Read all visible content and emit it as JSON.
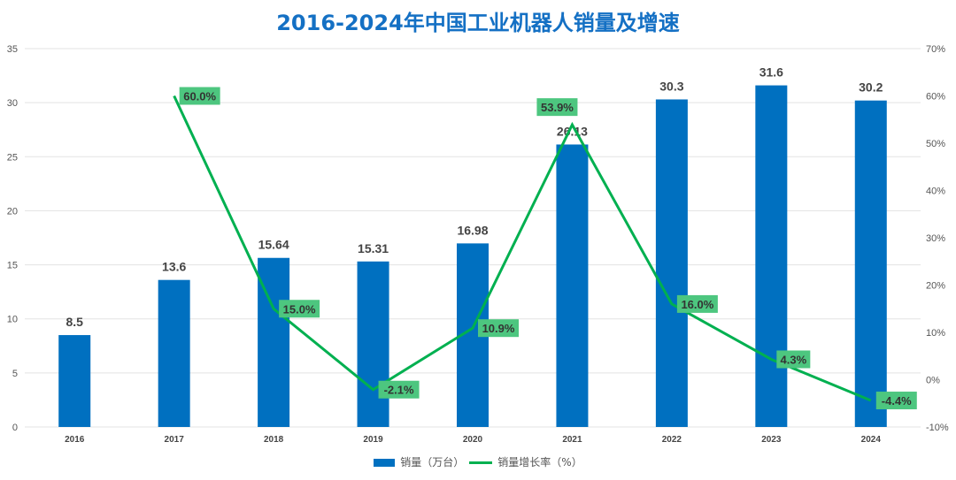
{
  "chart_data": {
    "type": "bar+line",
    "title": "2016-2024年中国工业机器人销量及增速",
    "categories": [
      "2016",
      "2017",
      "2018",
      "2019",
      "2020",
      "2021",
      "2022",
      "2023",
      "2024"
    ],
    "series": [
      {
        "name": "销量（万台）",
        "type": "bar",
        "axis": "left",
        "color": "#0070c0",
        "values": [
          8.5,
          13.6,
          15.64,
          15.31,
          16.98,
          26.13,
          30.3,
          31.6,
          30.2
        ],
        "labels": [
          "8.5",
          "13.6",
          "15.64",
          "15.31",
          "16.98",
          "26.13",
          "30.3",
          "31.6",
          "30.2"
        ]
      },
      {
        "name": "销量增长率（%）",
        "type": "line",
        "axis": "right",
        "color": "#00b050",
        "values": [
          null,
          60.0,
          15.0,
          -2.1,
          10.9,
          53.9,
          16.0,
          4.3,
          -4.4
        ],
        "labels": [
          "",
          "60.0%",
          "15.0%",
          "-2.1%",
          "10.9%",
          "53.9%",
          "16.0%",
          "4.3%",
          "-4.4%"
        ]
      }
    ],
    "ylim_left": [
      0,
      35
    ],
    "yticks_left": [
      "0",
      "5",
      "10",
      "15",
      "20",
      "25",
      "30",
      "35"
    ],
    "ylim_right": [
      -10,
      70
    ],
    "yticks_right": [
      "-10%",
      "0%",
      "10%",
      "20%",
      "30%",
      "40%",
      "50%",
      "60%",
      "70%"
    ],
    "grid": true,
    "legend": "bottom"
  }
}
